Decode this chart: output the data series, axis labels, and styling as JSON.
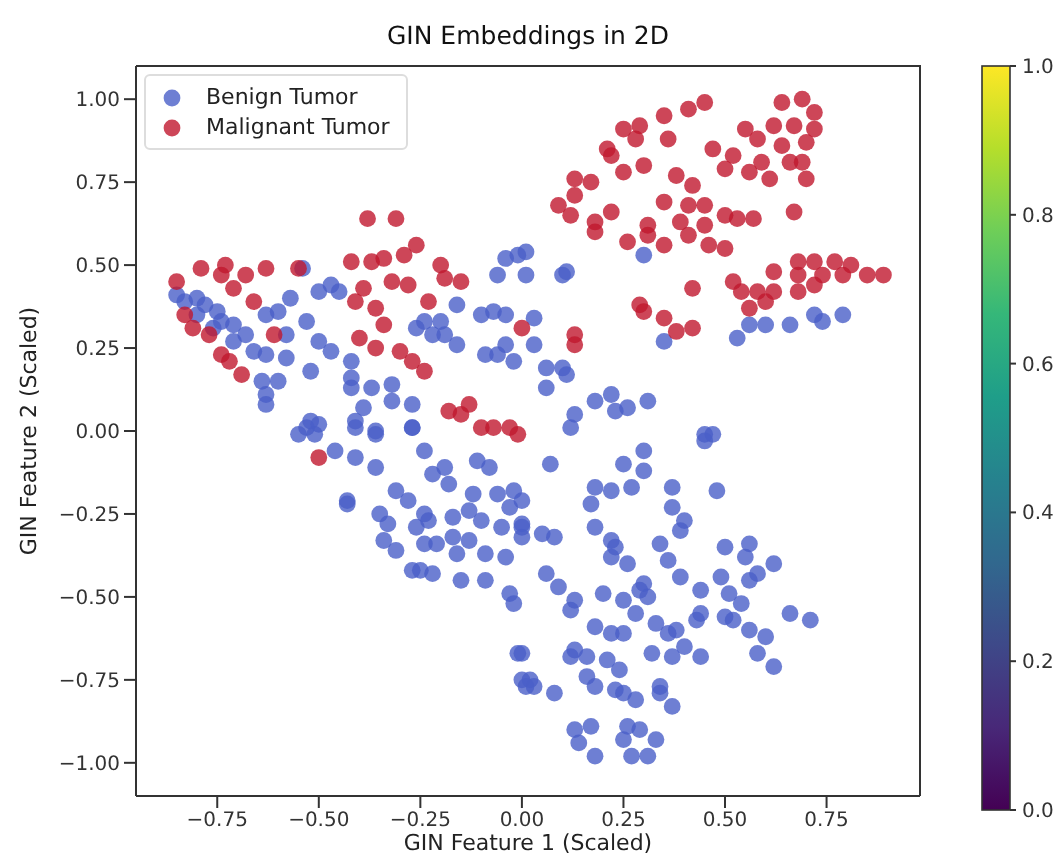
{
  "chart_data": {
    "type": "scatter",
    "title": "GIN Embeddings in 2D",
    "xlabel": "GIN Feature 1 (Scaled)",
    "ylabel": "GIN Feature 2 (Scaled)",
    "xlim": [
      -0.95,
      0.98
    ],
    "ylim": [
      -1.1,
      1.1
    ],
    "xticks": [
      {
        "value": -0.75,
        "label": "−0.75"
      },
      {
        "value": -0.5,
        "label": "−0.50"
      },
      {
        "value": -0.25,
        "label": "−0.25"
      },
      {
        "value": 0,
        "label": "0.00"
      },
      {
        "value": 0.25,
        "label": "0.25"
      },
      {
        "value": 0.5,
        "label": "0.50"
      },
      {
        "value": 0.75,
        "label": "0.75"
      }
    ],
    "yticks": [
      {
        "value": -1,
        "label": "−1.00"
      },
      {
        "value": -0.75,
        "label": "−0.75"
      },
      {
        "value": -0.5,
        "label": "−0.50"
      },
      {
        "value": -0.25,
        "label": "−0.25"
      },
      {
        "value": 0,
        "label": "0.00"
      },
      {
        "value": 0.25,
        "label": "0.25"
      },
      {
        "value": 0.5,
        "label": "0.50"
      },
      {
        "value": 0.75,
        "label": "0.75"
      },
      {
        "value": 1,
        "label": "1.00"
      }
    ],
    "clim": [
      0,
      1
    ],
    "cticks": [
      {
        "value": 0,
        "label": "0.0"
      },
      {
        "value": 0.2,
        "label": "0.2"
      },
      {
        "value": 0.4,
        "label": "0.4"
      },
      {
        "value": 0.6,
        "label": "0.6"
      },
      {
        "value": 0.8,
        "label": "0.8"
      },
      {
        "value": 1,
        "label": "1.0"
      }
    ],
    "grid": false,
    "legend": "top left",
    "marker": "circle",
    "series": [
      {
        "name": "Benign Tumor",
        "color": "#4a5fc8",
        "x": [
          -0.85,
          -0.83,
          -0.8,
          -0.78,
          -0.75,
          -0.8,
          -0.74,
          -0.76,
          -0.71,
          -0.68,
          -0.71,
          -0.66,
          -0.63,
          -0.63,
          -0.6,
          -0.57,
          -0.54,
          -0.53,
          -0.58,
          -0.52,
          -0.64,
          -0.63,
          -0.6,
          -0.58,
          -0.5,
          -0.47,
          -0.45,
          -0.5,
          -0.47,
          -0.42,
          -0.42,
          -0.42,
          -0.37,
          -0.39,
          -0.41,
          -0.36,
          -0.32,
          -0.32,
          -0.27,
          -0.27,
          -0.26,
          -0.24,
          -0.2,
          -0.19,
          -0.16,
          -0.22,
          -0.16,
          -0.1,
          -0.07,
          -0.04,
          -0.09,
          -0.06,
          -0.04,
          -0.02,
          -0.06,
          -0.04,
          -0.01,
          0.01,
          -0.53,
          -0.52,
          0.01,
          0.1,
          0.11,
          0.3,
          0.03,
          0.03,
          0.06,
          0.1,
          0.11,
          0.06,
          0.13,
          0.18,
          0.22,
          0.23,
          0.26,
          0.31,
          0.12,
          0.35,
          0.53,
          0.56,
          0.6,
          0.66,
          0.72,
          0.74,
          0.79,
          0.45,
          0.47,
          0.07,
          0.18,
          0.22,
          0.17,
          0.25,
          0.3,
          0.3,
          0.27,
          0.37,
          0.37,
          0.4,
          0.39,
          0.48,
          0.45,
          0.18,
          0.22,
          0.23,
          0.22,
          0.26,
          0.34,
          0.36,
          0.39,
          0.5,
          0.49,
          0.56,
          0.55,
          0.58,
          0.62,
          0.56,
          0.51,
          0.54,
          0.44,
          0.44,
          0.5,
          0.52,
          0.56,
          0.6,
          0.58,
          0.62,
          0.66,
          0.71,
          0.3,
          0.29,
          0.31,
          0.25,
          0.28,
          0.06,
          0.09,
          0.13,
          0.12,
          0.2,
          0.18,
          0.22,
          0.25,
          0.33,
          0.36,
          0.38,
          0.43,
          0.4,
          0.32,
          0.37,
          0.44,
          0.13,
          0.12,
          0.16,
          0.21,
          0.24,
          0.16,
          0.18,
          0.23,
          0.25,
          0.28,
          0.34,
          0.34,
          0.37,
          0.08,
          0.02,
          0.03,
          0.0,
          0.13,
          0.14,
          0.18,
          0.17,
          0.25,
          0.26,
          0.29,
          0.27,
          0.31,
          0.33,
          0.0,
          0.0,
          0.0,
          0.05,
          0.08,
          -0.63,
          -0.55,
          -0.5,
          -0.51,
          -0.46,
          -0.41,
          -0.41,
          -0.36,
          -0.36,
          -0.43,
          -0.43,
          -0.31,
          -0.28,
          -0.35,
          -0.33,
          -0.34,
          -0.31,
          -0.27,
          -0.25,
          -0.24,
          -0.26,
          -0.23,
          -0.24,
          -0.21,
          -0.22,
          -0.27,
          -0.24,
          -0.22,
          -0.19,
          -0.18,
          -0.17,
          -0.17,
          -0.16,
          -0.15,
          -0.13,
          -0.12,
          -0.11,
          -0.1,
          -0.08,
          -0.09,
          -0.09,
          -0.06,
          -0.05,
          -0.04,
          -0.03,
          -0.02,
          -0.01,
          0.0,
          0.01,
          -0.02,
          0.0,
          -0.03,
          -0.13
        ],
        "values": [
          0.41,
          0.39,
          0.4,
          0.38,
          0.36,
          0.35,
          0.33,
          0.31,
          0.32,
          0.29,
          0.27,
          0.24,
          0.23,
          0.35,
          0.36,
          0.4,
          0.49,
          0.33,
          0.29,
          0.18,
          0.15,
          0.11,
          0.15,
          0.22,
          0.42,
          0.44,
          0.42,
          0.27,
          0.24,
          0.21,
          0.16,
          0.13,
          0.13,
          0.07,
          0.03,
          0.0,
          0.14,
          0.09,
          0.08,
          0.01,
          0.31,
          0.33,
          0.33,
          0.29,
          0.26,
          0.29,
          0.38,
          0.35,
          0.36,
          0.35,
          0.23,
          0.23,
          0.26,
          0.21,
          0.47,
          0.52,
          0.53,
          0.54,
          0.01,
          0.03,
          0.47,
          0.47,
          0.48,
          0.53,
          0.34,
          0.26,
          0.19,
          0.19,
          0.17,
          0.13,
          0.05,
          0.09,
          0.11,
          0.06,
          0.07,
          0.09,
          0.01,
          0.27,
          0.28,
          0.32,
          0.32,
          0.32,
          0.35,
          0.33,
          0.35,
          -0.01,
          -0.01,
          -0.1,
          -0.17,
          -0.18,
          -0.22,
          -0.1,
          -0.06,
          -0.12,
          -0.17,
          -0.17,
          -0.23,
          -0.27,
          -0.3,
          -0.18,
          -0.03,
          -0.29,
          -0.33,
          -0.35,
          -0.38,
          -0.4,
          -0.34,
          -0.39,
          -0.44,
          -0.35,
          -0.44,
          -0.34,
          -0.38,
          -0.43,
          -0.4,
          -0.45,
          -0.49,
          -0.52,
          -0.48,
          -0.55,
          -0.56,
          -0.57,
          -0.6,
          -0.62,
          -0.67,
          -0.71,
          -0.55,
          -0.57,
          -0.46,
          -0.48,
          -0.5,
          -0.51,
          -0.55,
          -0.43,
          -0.47,
          -0.51,
          -0.54,
          -0.49,
          -0.59,
          -0.61,
          -0.61,
          -0.58,
          -0.61,
          -0.6,
          -0.57,
          -0.65,
          -0.67,
          -0.68,
          -0.68,
          -0.66,
          -0.68,
          -0.68,
          -0.69,
          -0.72,
          -0.74,
          -0.77,
          -0.78,
          -0.79,
          -0.81,
          -0.77,
          -0.79,
          -0.83,
          -0.79,
          -0.75,
          -0.77,
          -0.67,
          -0.9,
          -0.94,
          -0.98,
          -0.89,
          -0.93,
          -0.89,
          -0.9,
          -0.98,
          -0.98,
          -0.93,
          -0.28,
          -0.32,
          -0.21,
          -0.31,
          -0.32,
          0.08,
          -0.01,
          0.02,
          -0.01,
          -0.06,
          -0.08,
          0.01,
          -0.01,
          -0.11,
          -0.21,
          -0.22,
          -0.18,
          -0.21,
          -0.25,
          -0.28,
          -0.33,
          -0.36,
          -0.42,
          -0.42,
          -0.25,
          -0.29,
          -0.27,
          -0.34,
          -0.34,
          -0.43,
          0.01,
          -0.06,
          -0.13,
          -0.11,
          -0.16,
          -0.26,
          -0.32,
          -0.37,
          -0.45,
          -0.33,
          -0.19,
          -0.09,
          -0.27,
          -0.11,
          -0.37,
          -0.45,
          -0.19,
          -0.29,
          -0.38,
          -0.49,
          -0.52,
          -0.67,
          -0.75,
          -0.77,
          -0.18,
          -0.29,
          -0.23,
          -0.24
        ]
      },
      {
        "name": "Malignant Tumor",
        "color": "#c0182e",
        "x": [
          -0.85,
          -0.79,
          -0.74,
          -0.73,
          -0.68,
          -0.63,
          -0.71,
          -0.66,
          -0.83,
          -0.81,
          -0.77,
          -0.61,
          -0.74,
          -0.72,
          -0.69,
          -0.55,
          -0.38,
          -0.31,
          -0.26,
          -0.42,
          -0.37,
          -0.34,
          -0.29,
          -0.39,
          -0.32,
          -0.28,
          -0.36,
          -0.41,
          -0.34,
          -0.4,
          -0.36,
          -0.3,
          -0.27,
          -0.24,
          -0.2,
          -0.19,
          -0.15,
          -0.23,
          -0.18,
          -0.15,
          -0.13,
          -0.1,
          -0.07,
          -0.03,
          -0.01,
          -0.5,
          0.09,
          0.12,
          0.13,
          0.17,
          0.13,
          0.18,
          0.22,
          0.18,
          0.21,
          0.25,
          0.29,
          0.28,
          0.22,
          0.25,
          0.3,
          0.35,
          0.36,
          0.41,
          0.45,
          0.38,
          0.42,
          0.35,
          0.41,
          0.45,
          0.39,
          0.45,
          0.41,
          0.46,
          0.5,
          0.26,
          0.31,
          0.35,
          0.47,
          0.5,
          0.55,
          0.52,
          0.58,
          0.62,
          0.64,
          0.69,
          0.72,
          0.72,
          0.67,
          0.7,
          0.64,
          0.59,
          0.66,
          0.69,
          0.56,
          0.61,
          0.7,
          0.5,
          0.53,
          0.57,
          0.67,
          0.68,
          0.72,
          0.77,
          0.81,
          0.89,
          0.68,
          0.74,
          0.79,
          0.85,
          0.72,
          0.68,
          0.62,
          0.52,
          0.54,
          0.58,
          0.62,
          0.56,
          0.6,
          0.42,
          0.29,
          0.3,
          0.35,
          0.38,
          0.42,
          0.31,
          0.13,
          0.13,
          0.0
        ],
        "values": [
          0.45,
          0.49,
          0.47,
          0.5,
          0.47,
          0.49,
          0.43,
          0.39,
          0.35,
          0.31,
          0.29,
          0.29,
          0.23,
          0.21,
          0.17,
          0.49,
          0.64,
          0.64,
          0.56,
          0.51,
          0.51,
          0.52,
          0.53,
          0.43,
          0.45,
          0.44,
          0.37,
          0.39,
          0.32,
          0.28,
          0.25,
          0.24,
          0.21,
          0.18,
          0.5,
          0.46,
          0.45,
          0.39,
          0.06,
          0.05,
          0.08,
          0.01,
          0.01,
          0.01,
          -0.01,
          -0.08,
          0.68,
          0.65,
          0.76,
          0.75,
          0.71,
          0.63,
          0.66,
          0.6,
          0.85,
          0.91,
          0.92,
          0.88,
          0.83,
          0.78,
          0.8,
          0.95,
          0.88,
          0.97,
          0.99,
          0.77,
          0.74,
          0.69,
          0.68,
          0.68,
          0.63,
          0.62,
          0.59,
          0.56,
          0.55,
          0.57,
          0.59,
          0.56,
          0.85,
          0.79,
          0.91,
          0.83,
          0.88,
          0.92,
          0.99,
          1.0,
          0.96,
          0.91,
          0.92,
          0.87,
          0.86,
          0.81,
          0.81,
          0.81,
          0.78,
          0.76,
          0.76,
          0.65,
          0.64,
          0.64,
          0.66,
          0.51,
          0.51,
          0.51,
          0.5,
          0.47,
          0.47,
          0.47,
          0.47,
          0.47,
          0.44,
          0.42,
          0.48,
          0.45,
          0.42,
          0.42,
          0.42,
          0.37,
          0.39,
          0.43,
          0.38,
          0.36,
          0.34,
          0.3,
          0.31,
          0.62,
          0.29,
          0.26,
          0.31
        ]
      }
    ]
  }
}
